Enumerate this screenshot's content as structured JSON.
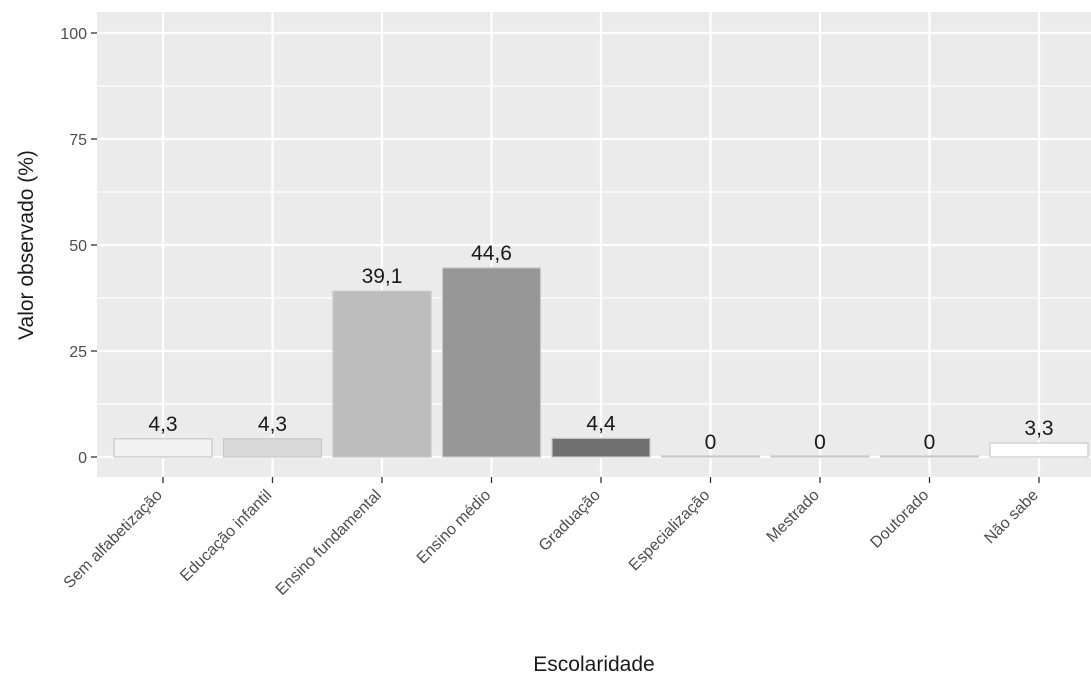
{
  "chart_data": {
    "type": "bar",
    "title": "",
    "xlabel": "Escolaridade",
    "ylabel": "Valor observado (%)",
    "ylim": [
      0,
      100
    ],
    "yticks": [
      0,
      25,
      50,
      75,
      100
    ],
    "ytick_labels": [
      "0",
      "25",
      "50",
      "75",
      "100"
    ],
    "grid": true,
    "legend": "none",
    "categories": [
      "Sem alfabetização",
      "Educação infantil",
      "Ensino fundamental",
      "Ensino médio",
      "Graduação",
      "Especialização",
      "Mestrado",
      "Doutorado",
      "Não sabe"
    ],
    "values": [
      4.3,
      4.3,
      39.1,
      44.6,
      4.4,
      0,
      0,
      0,
      3.3
    ],
    "data_labels": [
      "4,3",
      "4,3",
      "39,1",
      "44,6",
      "4,4",
      "0",
      "0",
      "0",
      "3,3"
    ],
    "colors": [
      "#f2f2f2",
      "#d9d9d9",
      "#bdbdbd",
      "#969696",
      "#707070",
      "#cfcfcf",
      "#cfcfcf",
      "#cfcfcf",
      "#ffffff"
    ],
    "panel_background": "#ebebeb",
    "grid_color": "#ffffff",
    "bar_outline": "#c8c8c8",
    "text_color": "#1a1a1a",
    "tick_label_color": "#4d4d4d"
  }
}
